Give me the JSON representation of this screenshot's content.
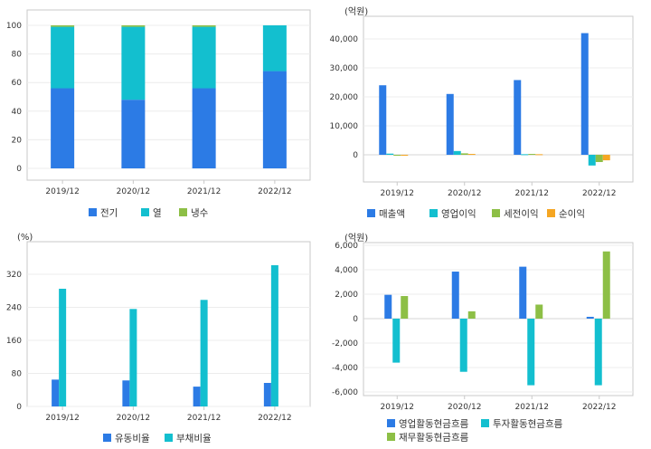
{
  "charts": [
    {
      "type": "bar",
      "stacked": true,
      "unit": "",
      "categories": [
        "2019/12",
        "2020/12",
        "2021/12",
        "2022/12"
      ],
      "ylim": [
        0,
        100
      ],
      "yticks": [
        0,
        20,
        40,
        60,
        80,
        100
      ],
      "ytick_labels": [
        "0",
        "20",
        "40",
        "60",
        "80",
        "100"
      ],
      "grid": true,
      "legend_position": "bottom",
      "series": [
        {
          "name": "전기",
          "color": "#2c7be5",
          "values": [
            56,
            48,
            56,
            68
          ]
        },
        {
          "name": "열",
          "color": "#13bfcf",
          "values": [
            43,
            51,
            43,
            32
          ]
        },
        {
          "name": "냉수",
          "color": "#8dbf46",
          "values": [
            1,
            1,
            1,
            0
          ]
        }
      ]
    },
    {
      "type": "bar",
      "stacked": false,
      "unit": "(억원)",
      "categories": [
        "2019/12",
        "2020/12",
        "2021/12",
        "2022/12"
      ],
      "ylim": [
        -6000,
        45000
      ],
      "yticks": [
        0,
        10000,
        20000,
        30000,
        40000
      ],
      "ytick_labels": [
        "0",
        "10,000",
        "20,000",
        "30,000",
        "40,000"
      ],
      "grid": true,
      "legend_position": "bottom",
      "series": [
        {
          "name": "매출액",
          "color": "#2c7be5",
          "values": [
            24000,
            21000,
            25800,
            42000
          ]
        },
        {
          "name": "영업이익",
          "color": "#13bfcf",
          "values": [
            400,
            1300,
            200,
            -3700
          ]
        },
        {
          "name": "세전이익",
          "color": "#8dbf46",
          "values": [
            -100,
            500,
            300,
            -2500
          ]
        },
        {
          "name": "순이익",
          "color": "#f5a623",
          "values": [
            -200,
            300,
            200,
            -1900
          ]
        }
      ]
    },
    {
      "type": "bar",
      "stacked": false,
      "unit": "(%)",
      "categories": [
        "2019/12",
        "2020/12",
        "2021/12",
        "2022/12"
      ],
      "ylim": [
        0,
        360
      ],
      "yticks": [
        0,
        80,
        160,
        240,
        320
      ],
      "ytick_labels": [
        "0",
        "80",
        "160",
        "240",
        "320"
      ],
      "grid": true,
      "legend_position": "bottom",
      "series": [
        {
          "name": "유동비율",
          "color": "#2c7be5",
          "values": [
            65,
            63,
            48,
            57
          ]
        },
        {
          "name": "부채비율",
          "color": "#13bfcf",
          "values": [
            285,
            236,
            258,
            342
          ]
        }
      ]
    },
    {
      "type": "bar",
      "stacked": false,
      "unit": "(억원)",
      "categories": [
        "2019/12",
        "2020/12",
        "2021/12",
        "2022/12"
      ],
      "ylim": [
        -6000,
        6000
      ],
      "yticks": [
        -6000,
        -4000,
        -2000,
        0,
        2000,
        4000,
        6000
      ],
      "ytick_labels": [
        "-6,000",
        "-4,000",
        "-2,000",
        "0",
        "2,000",
        "4,000",
        "6,000"
      ],
      "grid": true,
      "legend_position": "bottom",
      "series": [
        {
          "name": "영업활동현금흐름",
          "color": "#2c7be5",
          "values": [
            1950,
            3850,
            4250,
            150
          ]
        },
        {
          "name": "투자활동현금흐름",
          "color": "#13bfcf",
          "values": [
            -3600,
            -4350,
            -5450,
            -5450
          ]
        },
        {
          "name": "재무활동현금흐름",
          "color": "#8dbf46",
          "values": [
            1850,
            600,
            1150,
            5500
          ]
        }
      ]
    }
  ]
}
